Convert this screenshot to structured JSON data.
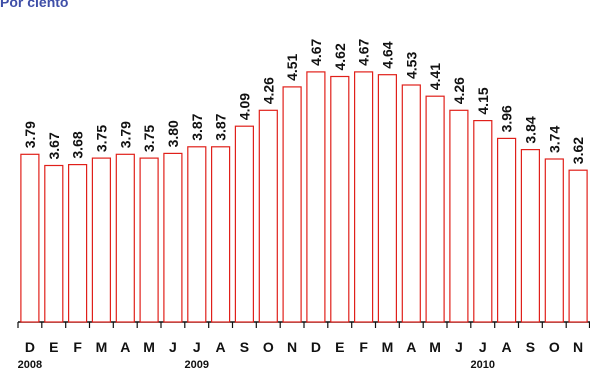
{
  "title": "Por ciento",
  "chart_data": {
    "type": "bar",
    "title": "Por ciento",
    "xlabel": "",
    "ylabel": "",
    "ylim": [
      2.0,
      4.85
    ],
    "grid": false,
    "legend": "none",
    "bar_color": "#e0201a",
    "title_color": "#3f4fa8",
    "categories": [
      "D",
      "E",
      "F",
      "M",
      "A",
      "M",
      "J",
      "J",
      "A",
      "S",
      "O",
      "N",
      "D",
      "E",
      "F",
      "M",
      "A",
      "M",
      "J",
      "J",
      "A",
      "S",
      "O",
      "N"
    ],
    "values": [
      3.79,
      3.67,
      3.68,
      3.75,
      3.79,
      3.75,
      3.8,
      3.87,
      3.87,
      4.09,
      4.26,
      4.51,
      4.67,
      4.62,
      4.67,
      4.64,
      4.53,
      4.41,
      4.26,
      4.15,
      3.96,
      3.84,
      3.74,
      3.62
    ],
    "value_labels": [
      "3.79",
      "3.67",
      "3.68",
      "3.75",
      "3.79",
      "3.75",
      "3.80",
      "3.87",
      "3.87",
      "4.09",
      "4.26",
      "4.51",
      "4.67",
      "4.62",
      "4.67",
      "4.64",
      "4.53",
      "4.41",
      "4.26",
      "4.15",
      "3.96",
      "3.84",
      "3.74",
      "3.62"
    ],
    "year_labels": [
      {
        "text": "2008",
        "index": 0
      },
      {
        "text": "2009",
        "index": 7
      },
      {
        "text": "2010",
        "index": 19
      }
    ]
  }
}
